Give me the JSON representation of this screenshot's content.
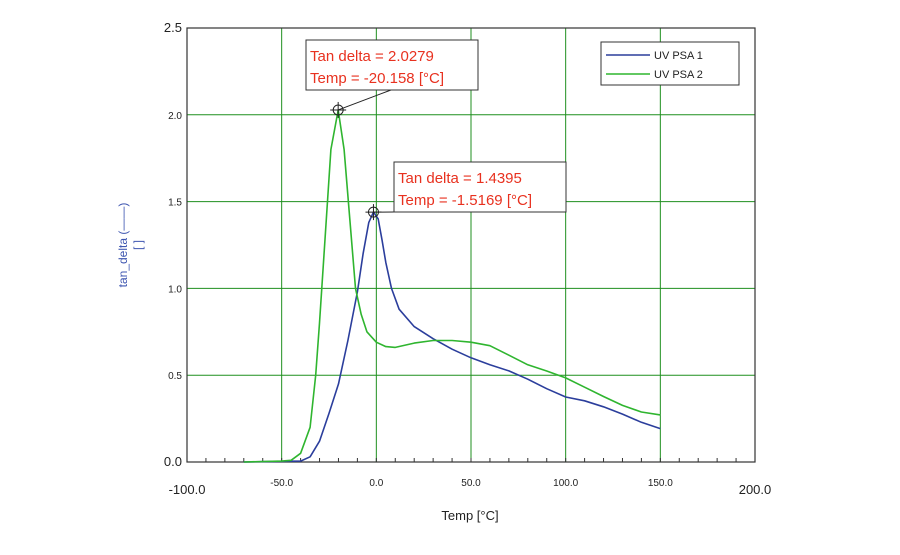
{
  "chart_data": {
    "type": "line",
    "xlabel": "Temp [°C]",
    "ylabel": "tan_delta (——)",
    "yunit": "[ ]",
    "xlim": [
      -100,
      200
    ],
    "ylim": [
      0,
      2.5
    ],
    "xticks": [
      -100,
      -50,
      0,
      50,
      100,
      150,
      200
    ],
    "xtick_labels": [
      "-100.0",
      "-50.0",
      "0.0",
      "50.0",
      "100.0",
      "150.0",
      "200.0"
    ],
    "yticks": [
      0,
      0.5,
      1,
      1.5,
      2,
      2.5
    ],
    "ytick_labels": [
      "0.0",
      "0.5",
      "1.0",
      "1.5",
      "2.0",
      "2.5"
    ],
    "grid": true,
    "grid_color": "#1f8f1f",
    "legend_position": "top-right",
    "series": [
      {
        "name": "UV PSA 1",
        "color": "#2b3e9c",
        "x": [
          -70,
          -40,
          -35,
          -30,
          -25,
          -20,
          -15,
          -10,
          -7,
          -4,
          -1.5169,
          1,
          3,
          5,
          8,
          12,
          20,
          30,
          40,
          50,
          60,
          70,
          80,
          90,
          100,
          110,
          120,
          130,
          140,
          150
        ],
        "y": [
          0,
          0.005,
          0.03,
          0.12,
          0.28,
          0.45,
          0.7,
          0.98,
          1.2,
          1.38,
          1.4395,
          1.4,
          1.28,
          1.15,
          1.0,
          0.88,
          0.78,
          0.71,
          0.65,
          0.6,
          0.56,
          0.52,
          0.48,
          0.43,
          0.38,
          0.35,
          0.31,
          0.27,
          0.23,
          0.2
        ]
      },
      {
        "name": "UV PSA 2",
        "color": "#2fb52f",
        "x": [
          -70,
          -50,
          -45,
          -40,
          -35,
          -32,
          -30,
          -27,
          -24,
          -20.158,
          -17,
          -14,
          -11,
          -8,
          -5,
          0,
          5,
          10,
          20,
          30,
          40,
          50,
          60,
          70,
          80,
          90,
          100,
          110,
          120,
          130,
          140,
          150
        ],
        "y": [
          0,
          0.005,
          0.01,
          0.05,
          0.2,
          0.5,
          0.8,
          1.3,
          1.8,
          2.0279,
          1.8,
          1.4,
          1.0,
          0.85,
          0.75,
          0.69,
          0.665,
          0.66,
          0.685,
          0.7,
          0.7,
          0.69,
          0.67,
          0.63,
          0.57,
          0.52,
          0.47,
          0.42,
          0.38,
          0.34,
          0.3,
          0.27
        ]
      }
    ],
    "annotations": [
      {
        "x": -20.158,
        "y": 2.0279,
        "line1": "Tan delta = 2.0279",
        "line2": "Temp = -20.158 [°C]"
      },
      {
        "x": -1.5169,
        "y": 1.4395,
        "line1": "Tan delta = 1.4395",
        "line2": "Temp = -1.5169 [°C]"
      }
    ],
    "annotation_color": "#e8311f"
  }
}
